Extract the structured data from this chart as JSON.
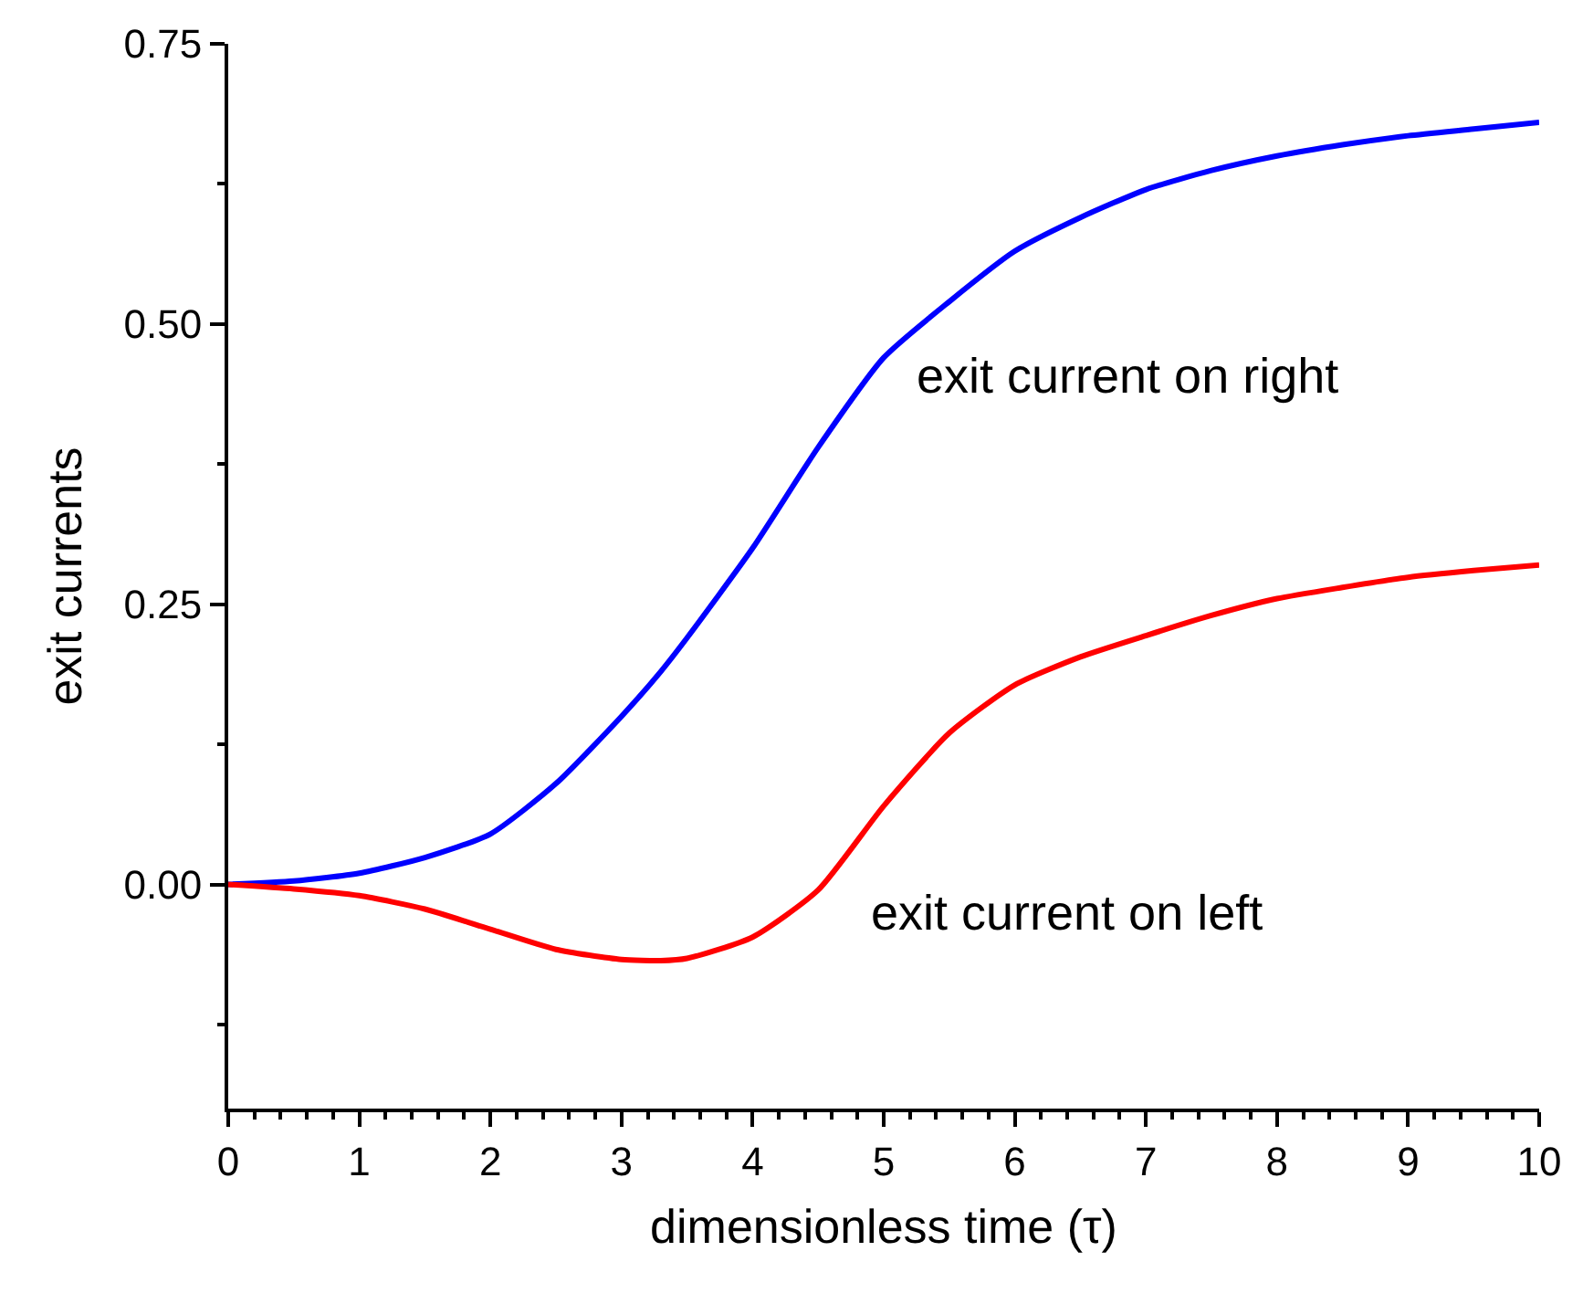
{
  "chart_data": {
    "type": "line",
    "xlabel": "dimensionless time (τ)",
    "ylabel": "exit currents",
    "x": [
      0,
      0.5,
      1,
      1.5,
      2,
      2.5,
      3,
      3.3,
      3.5,
      4,
      4.5,
      5,
      5.5,
      6,
      6.5,
      7,
      7.5,
      8,
      8.5,
      9,
      9.5,
      10
    ],
    "series": [
      {
        "color": "#0000ff",
        "values": [
          0,
          0.003,
          0.01,
          0.024,
          0.045,
          0.09,
          0.15,
          0.19,
          0.22,
          0.3,
          0.39,
          0.47,
          0.52,
          0.565,
          0.595,
          0.62,
          0.637,
          0.65,
          0.66,
          0.668,
          0.674,
          0.68
        ]
      },
      {
        "color": "#ff0000",
        "values": [
          0,
          -0.004,
          -0.01,
          -0.022,
          -0.04,
          -0.058,
          -0.067,
          -0.068,
          -0.066,
          -0.047,
          -0.005,
          0.07,
          0.135,
          0.178,
          0.203,
          0.222,
          0.24,
          0.255,
          0.265,
          0.274,
          0.28,
          0.285
        ]
      }
    ],
    "xlim": [
      0,
      10
    ],
    "ylim": [
      -0.2,
      0.75
    ],
    "xticks": [
      0,
      {
        "value": 0.2,
        "label": null
      },
      {
        "value": 0.4,
        "label": null
      },
      {
        "value": 0.6,
        "label": null
      },
      {
        "value": 0.8,
        "label": null
      },
      1,
      {
        "value": 1.2,
        "label": null
      },
      {
        "value": 1.4,
        "label": null
      },
      {
        "value": 1.6,
        "label": null
      },
      {
        "value": 1.8,
        "label": null
      },
      2,
      {
        "value": 2.2,
        "label": null
      },
      {
        "value": 2.4,
        "label": null
      },
      {
        "value": 2.6,
        "label": null
      },
      {
        "value": 2.8,
        "label": null
      },
      3,
      {
        "value": 3.2,
        "label": null
      },
      {
        "value": 3.4,
        "label": null
      },
      {
        "value": 3.6,
        "label": null
      },
      {
        "value": 3.8,
        "label": null
      },
      4,
      {
        "value": 4.2,
        "label": null
      },
      {
        "value": 4.4,
        "label": null
      },
      {
        "value": 4.6,
        "label": null
      },
      {
        "value": 4.8,
        "label": null
      },
      5,
      {
        "value": 5.2,
        "label": null
      },
      {
        "value": 5.4,
        "label": null
      },
      {
        "value": 5.6,
        "label": null
      },
      {
        "value": 5.8,
        "label": null
      },
      6,
      {
        "value": 6.2,
        "label": null
      },
      {
        "value": 6.4,
        "label": null
      },
      {
        "value": 6.6,
        "label": null
      },
      {
        "value": 6.8,
        "label": null
      },
      7,
      {
        "value": 7.2,
        "label": null
      },
      {
        "value": 7.4,
        "label": null
      },
      {
        "value": 7.6,
        "label": null
      },
      {
        "value": 7.8,
        "label": null
      },
      8,
      {
        "value": 8.2,
        "label": null
      },
      {
        "value": 8.4,
        "label": null
      },
      {
        "value": 8.6,
        "label": null
      },
      {
        "value": 8.8,
        "label": null
      },
      9,
      {
        "value": 9.2,
        "label": null
      },
      {
        "value": 9.4,
        "label": null
      },
      {
        "value": 9.6,
        "label": null
      },
      {
        "value": 9.8,
        "label": null
      },
      10
    ],
    "yticks": [
      {
        "value": -0.125,
        "label": null
      },
      {
        "value": 0,
        "label": "0.00"
      },
      {
        "value": 0.125,
        "label": null
      },
      {
        "value": 0.25,
        "label": "0.25"
      },
      {
        "value": 0.375,
        "label": null
      },
      {
        "value": 0.5,
        "label": "0.50"
      },
      {
        "value": 0.625,
        "label": null
      },
      {
        "value": 0.75,
        "label": "0.75"
      }
    ],
    "annotations": [
      "exit current on right",
      "exit current on left"
    ],
    "marker": "none",
    "line_style": "solid"
  }
}
